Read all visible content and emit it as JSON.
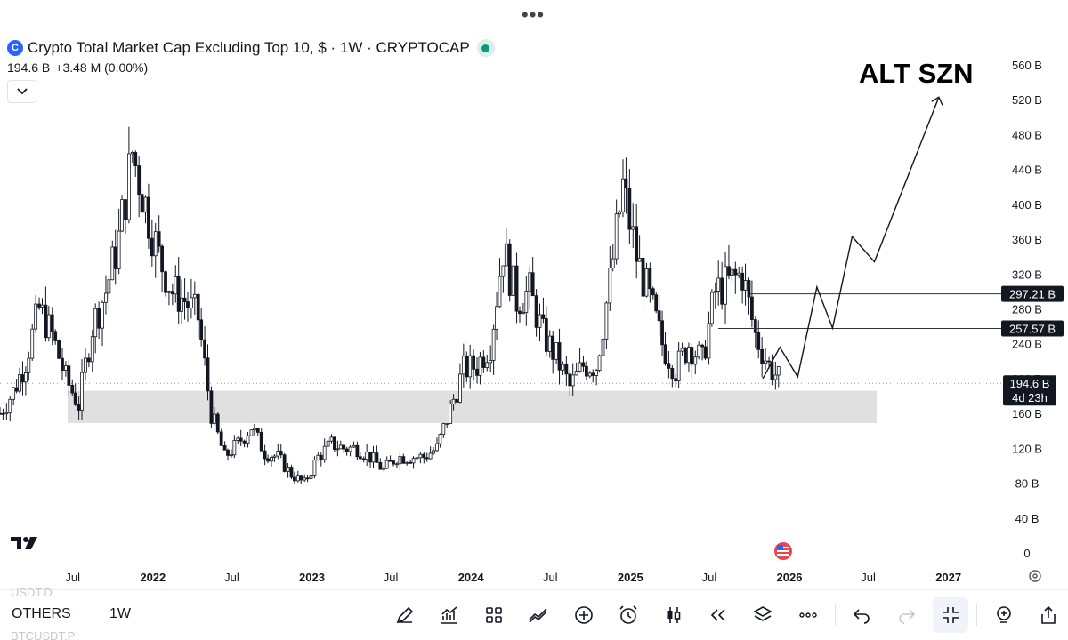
{
  "window": {
    "menu_dots": "•••"
  },
  "header": {
    "title": "Crypto Total Market Cap Excluding Top 10, $ · 1W · CRYPTOCAP",
    "last_value": "194.6 B",
    "change": "+3.48 M (0.00%)"
  },
  "bottom_bar": {
    "ghost_top": "USDT.D",
    "ghost_bottom": "BTCUSDT.P",
    "symbol": "OTHERS",
    "interval": "1W",
    "tools": [
      "draw-icon",
      "indicators-icon",
      "layout-icon",
      "compare-icon",
      "add-icon",
      "alert-icon",
      "chart-type-icon",
      "replay-icon",
      "layers-icon",
      "more-icon",
      "undo-icon",
      "redo-icon",
      "fullscreen-exit-icon",
      "zoom-icon",
      "share-icon"
    ]
  },
  "chart_data": {
    "type": "candlestick",
    "ylim": [
      0,
      560
    ],
    "y_unit": "B",
    "y_ticks": [
      "560 B",
      "520 B",
      "480 B",
      "440 B",
      "400 B",
      "360 B",
      "320 B",
      "280 B",
      "240 B",
      "200 B",
      "160 B",
      "120 B",
      "80 B",
      "40 B",
      "0"
    ],
    "x_ticks": [
      "Jul",
      "2022",
      "Jul",
      "2023",
      "Jul",
      "2024",
      "Jul",
      "2025",
      "Jul",
      "2026",
      "Jul",
      "2027"
    ],
    "price_labels": [
      {
        "text": "297.21 B",
        "value": 297.21
      },
      {
        "text": "257.57 B",
        "value": 257.57
      }
    ],
    "current_price": {
      "text": "194.6 B",
      "countdown": "4d 23h",
      "value": 194.6
    },
    "support_zone": {
      "low": 149,
      "high": 186
    },
    "annotation": {
      "text": "ALT SZN"
    },
    "projection": [
      {
        "x": "2025-11-01",
        "y": 200
      },
      {
        "x": "2025-12-10",
        "y": 236
      },
      {
        "x": "2026-01-20",
        "y": 202
      },
      {
        "x": "2026-03-05",
        "y": 305
      },
      {
        "x": "2026-04-10",
        "y": 258
      },
      {
        "x": "2026-05-25",
        "y": 363
      },
      {
        "x": "2026-07-15",
        "y": 334
      },
      {
        "x": "2026-12-10",
        "y": 523
      }
    ],
    "series": [
      {
        "name": "Crypto Total Market Cap Excluding Top 10",
        "close": [
          [
            "2021-01",
            160
          ],
          [
            "2021-02",
            185
          ],
          [
            "2021-03",
            220
          ],
          [
            "2021-04",
            280
          ],
          [
            "2021-05",
            250
          ],
          [
            "2021-06",
            200
          ],
          [
            "2021-07",
            170
          ],
          [
            "2021-08",
            260
          ],
          [
            "2021-09",
            300
          ],
          [
            "2021-10",
            360
          ],
          [
            "2021-11",
            460
          ],
          [
            "2021-12",
            400
          ],
          [
            "2022-01",
            340
          ],
          [
            "2022-02",
            300
          ],
          [
            "2022-03",
            290
          ],
          [
            "2022-04",
            270
          ],
          [
            "2022-05",
            160
          ],
          [
            "2022-06",
            110
          ],
          [
            "2022-07",
            125
          ],
          [
            "2022-08",
            145
          ],
          [
            "2022-09",
            115
          ],
          [
            "2022-10",
            110
          ],
          [
            "2022-11",
            90
          ],
          [
            "2022-12",
            80
          ],
          [
            "2023-01",
            110
          ],
          [
            "2023-02",
            125
          ],
          [
            "2023-03",
            120
          ],
          [
            "2023-04",
            120
          ],
          [
            "2023-05",
            110
          ],
          [
            "2023-06",
            95
          ],
          [
            "2023-07",
            110
          ],
          [
            "2023-08",
            110
          ],
          [
            "2023-09",
            110
          ],
          [
            "2023-10",
            120
          ],
          [
            "2023-11",
            165
          ],
          [
            "2023-12",
            210
          ],
          [
            "2024-01",
            215
          ],
          [
            "2024-02",
            240
          ],
          [
            "2024-03",
            350
          ],
          [
            "2024-04",
            290
          ],
          [
            "2024-05",
            300
          ],
          [
            "2024-06",
            250
          ],
          [
            "2024-07",
            225
          ],
          [
            "2024-08",
            190
          ],
          [
            "2024-09",
            215
          ],
          [
            "2024-10",
            215
          ],
          [
            "2024-11",
            310
          ],
          [
            "2024-12",
            420
          ],
          [
            "2025-01",
            340
          ],
          [
            "2025-02",
            290
          ],
          [
            "2025-03",
            240
          ],
          [
            "2025-04",
            210
          ],
          [
            "2025-05",
            240
          ],
          [
            "2025-06",
            220
          ],
          [
            "2025-07",
            300
          ],
          [
            "2025-08",
            310
          ],
          [
            "2025-09",
            320
          ],
          [
            "2025-10",
            250
          ],
          [
            "2025-11",
            215
          ],
          [
            "2025-12",
            195
          ]
        ]
      }
    ]
  }
}
